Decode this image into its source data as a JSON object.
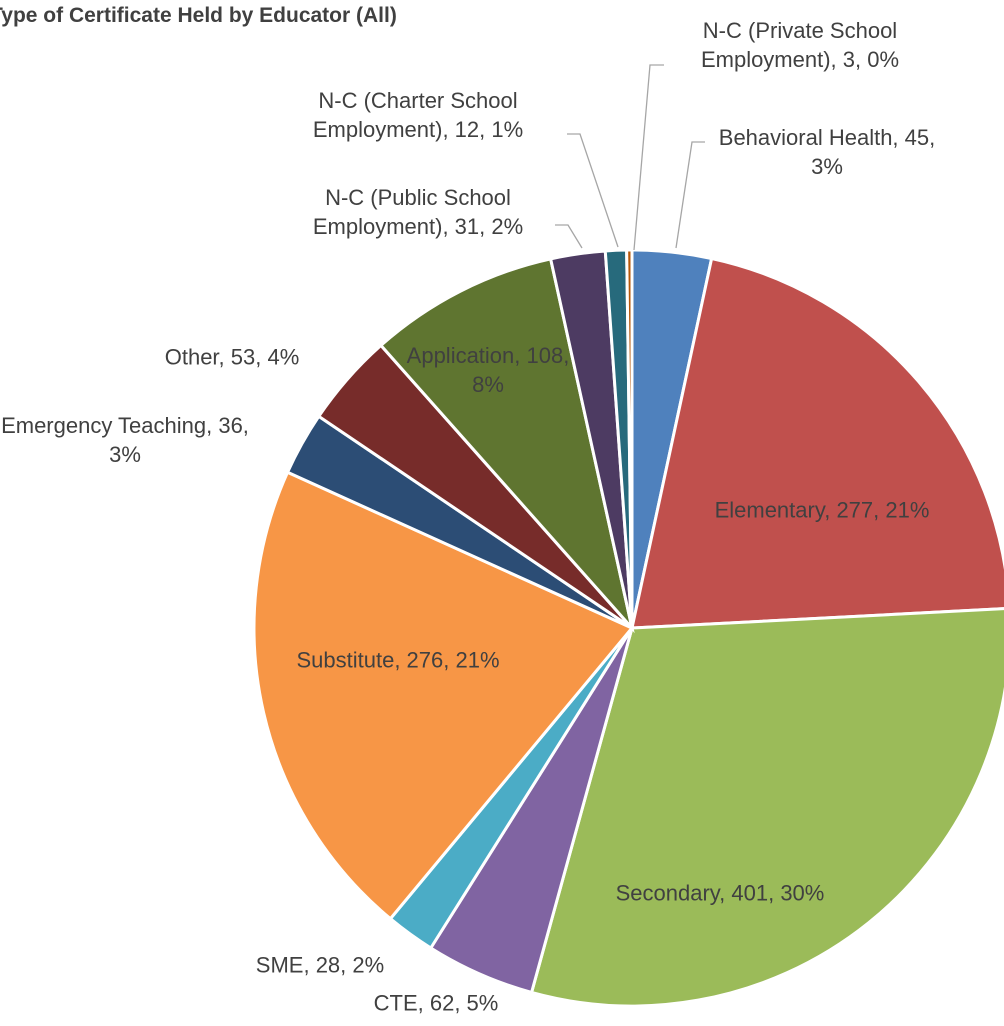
{
  "chart_data": {
    "type": "pie",
    "title": "Type of Certificate Held by Educator (All)",
    "categories": [
      "Behavioral Health",
      "Elementary",
      "Secondary",
      "CTE",
      "SME",
      "Substitute",
      "Emergency Teaching",
      "Other",
      "Application",
      "N-C (Public School Employment)",
      "N-C (Charter School Employment)",
      "N-C (Private School Employment)"
    ],
    "values": [
      45,
      277,
      401,
      62,
      28,
      276,
      36,
      53,
      108,
      31,
      12,
      3
    ],
    "value_labels": [
      "Behavioral Health, 45, 3%",
      "Elementary, 277, 21%",
      "Secondary, 401, 30%",
      "CTE, 62, 5%",
      "SME, 28, 2%",
      "Substitute, 276, 21%",
      "Emergency Teaching, 36, 3%",
      "Other, 53, 4%",
      "Application, 108, 8%",
      "N-C (Public School Employment), 31, 2%",
      "N-C (Charter School Employment), 12, 1%",
      "N-C (Private School Employment), 3, 0%"
    ],
    "colors": [
      "#4f81bd",
      "#c0504d",
      "#9bbb59",
      "#8064a2",
      "#4bacc6",
      "#f79646",
      "#2c4d75",
      "#772c2a",
      "#5f7530",
      "#4d3b62",
      "#276a7c",
      "#b65708"
    ]
  }
}
